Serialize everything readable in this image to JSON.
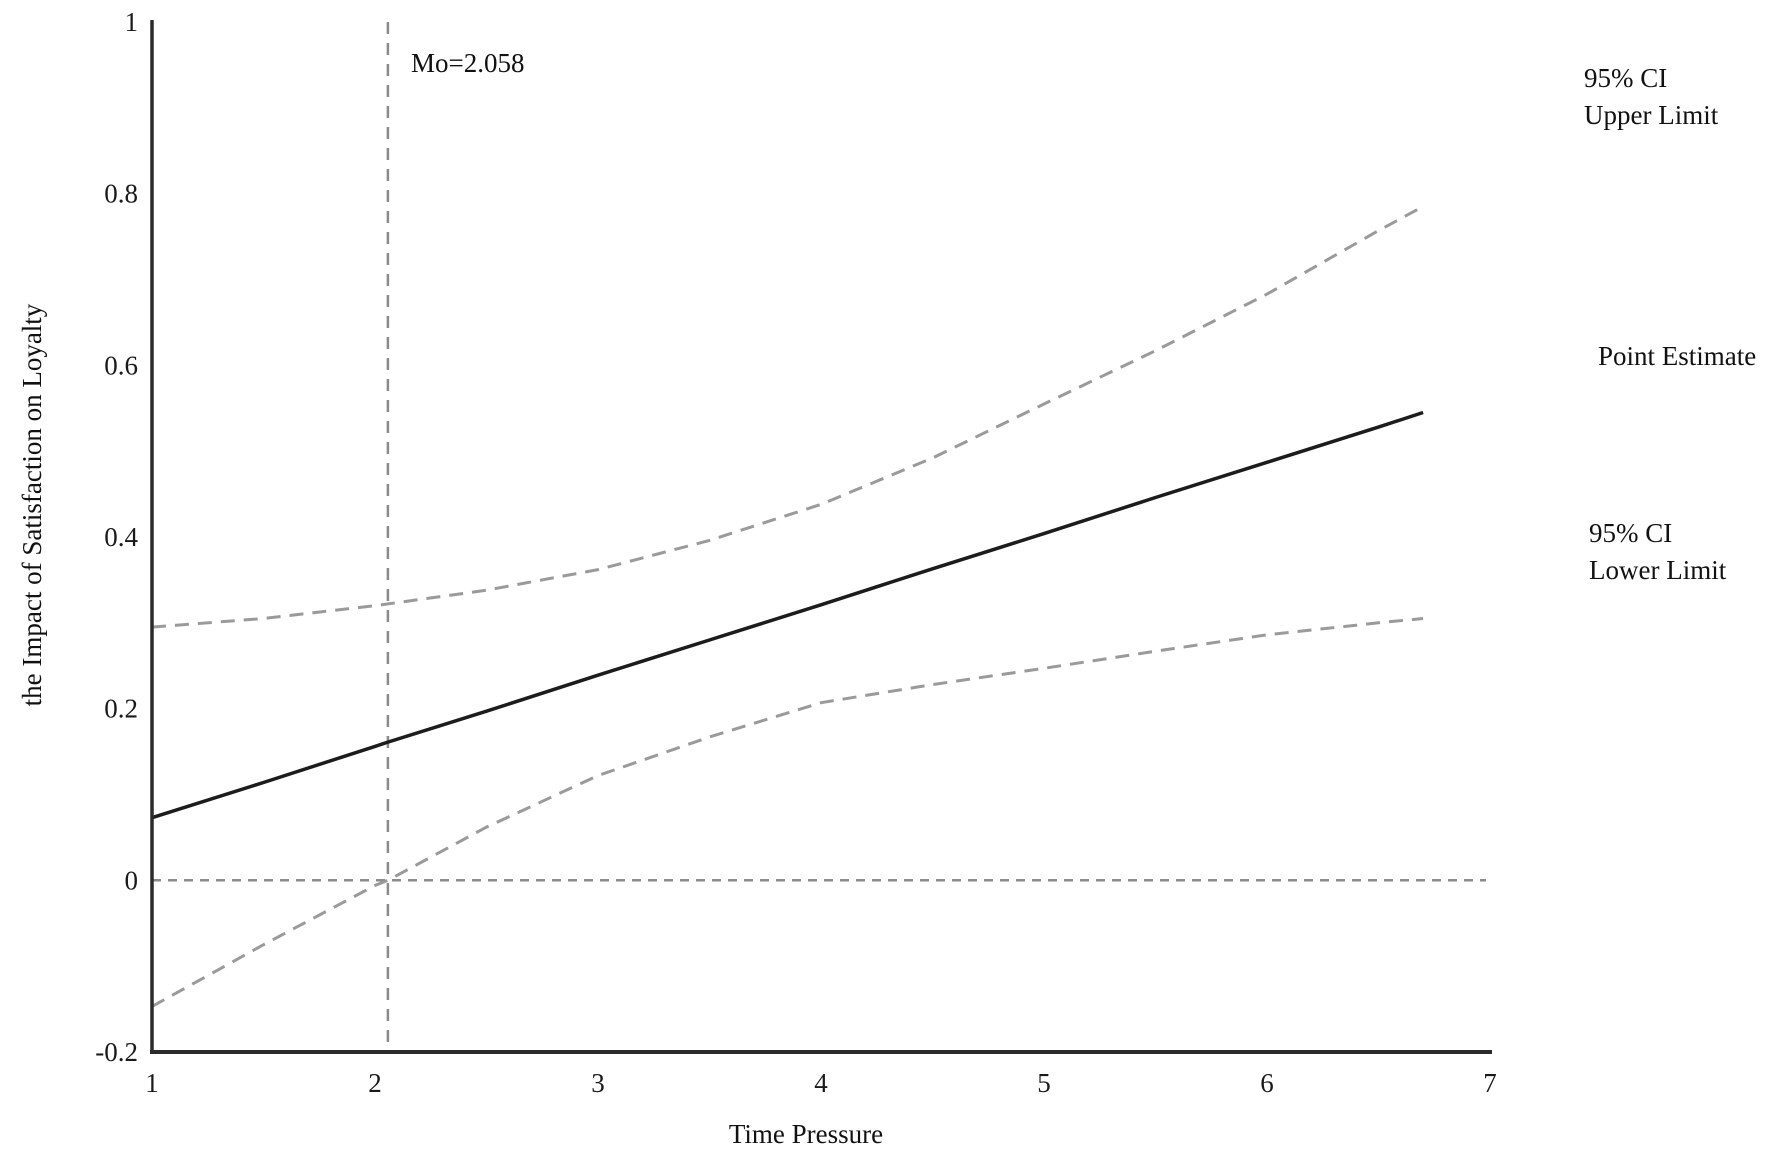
{
  "figure": {
    "background": "#ffffff"
  },
  "chart_data": {
    "type": "line",
    "title": "",
    "xlabel": "Time Pressure",
    "ylabel": "the Impact of Satisfaction on Loyalty",
    "xlim": [
      1,
      7
    ],
    "ylim": [
      -0.2,
      1
    ],
    "grid": false,
    "legend_position": "right-outside",
    "colors": {
      "axis": "#2b2b2b",
      "text": "#1a1a1a",
      "ci_line": "#9a9a9a",
      "estimate_line": "#1c1c1c",
      "guide_line": "#8a8a8a"
    },
    "x_ticks": [
      {
        "value": 1,
        "label": "1"
      },
      {
        "value": 2,
        "label": "2"
      },
      {
        "value": 3,
        "label": "3"
      },
      {
        "value": 4,
        "label": "4"
      },
      {
        "value": 5,
        "label": "5"
      },
      {
        "value": 6,
        "label": "6"
      },
      {
        "value": 7,
        "label": "7"
      }
    ],
    "y_ticks": [
      {
        "value": 1,
        "label": "1"
      },
      {
        "value": 0.8,
        "label": "0.8"
      },
      {
        "value": 0.6,
        "label": "0.6"
      },
      {
        "value": 0.4,
        "label": "0.4"
      },
      {
        "value": 0.2,
        "label": "0.2"
      },
      {
        "value": 0,
        "label": "0"
      },
      {
        "value": -0.2,
        "label": "-0.2"
      }
    ],
    "annotations": {
      "moderator_label": "Mo=2.058",
      "moderator_x": 2.058,
      "zero_line_y": 0
    },
    "series": [
      {
        "id": "upper-ci",
        "name": "95% CI Upper Limit",
        "legend_line1": "95% CI",
        "legend_line2": "Upper Limit",
        "style": "dashed",
        "color": "#9a9a9a",
        "x": [
          1,
          1.5,
          2,
          2.058,
          2.5,
          3,
          3.5,
          4,
          4.5,
          5,
          5.5,
          6,
          6.5,
          6.7
        ],
        "y": [
          0.295,
          0.305,
          0.32,
          0.322,
          0.338,
          0.362,
          0.396,
          0.438,
          0.492,
          0.555,
          0.617,
          0.683,
          0.757,
          0.785
        ]
      },
      {
        "id": "point-estimate",
        "name": "Point Estimate",
        "legend_line1": "Point Estimate",
        "legend_line2": "",
        "style": "solid",
        "color": "#1c1c1c",
        "x": [
          1,
          1.5,
          2,
          2.058,
          2.5,
          3,
          3.5,
          4,
          4.5,
          5,
          5.5,
          6,
          6.5,
          6.7
        ],
        "y": [
          0.073,
          0.114,
          0.156,
          0.161,
          0.197,
          0.239,
          0.28,
          0.321,
          0.363,
          0.404,
          0.446,
          0.487,
          0.528,
          0.545
        ]
      },
      {
        "id": "lower-ci",
        "name": "95% CI Lower Limit",
        "legend_line1": "95% CI",
        "legend_line2": "Lower Limit",
        "style": "dashed",
        "color": "#9a9a9a",
        "x": [
          1,
          1.5,
          2,
          2.058,
          2.5,
          3,
          3.5,
          4,
          4.5,
          5,
          5.5,
          6,
          6.5,
          6.7
        ],
        "y": [
          -0.147,
          -0.075,
          -0.006,
          0.0,
          0.062,
          0.122,
          0.167,
          0.207,
          0.228,
          0.247,
          0.267,
          0.286,
          0.3,
          0.305
        ]
      }
    ]
  }
}
